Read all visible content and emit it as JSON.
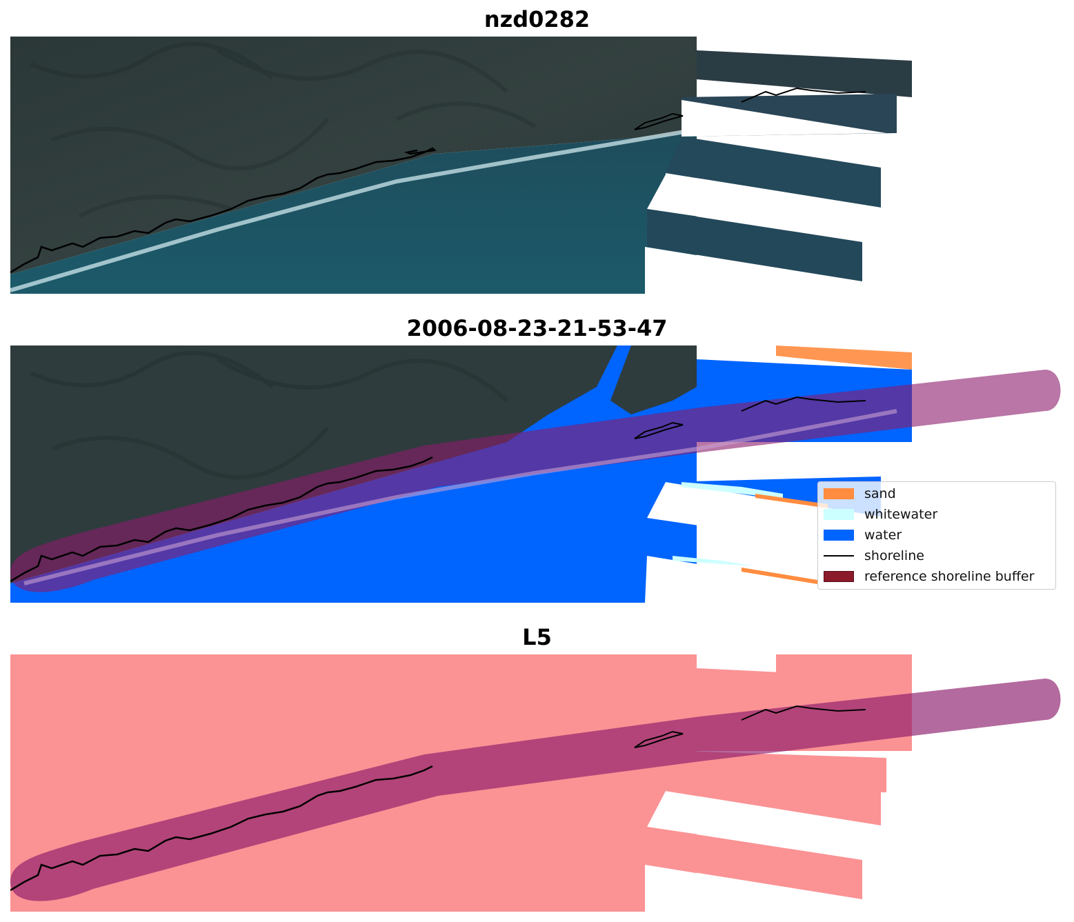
{
  "panels": [
    {
      "title": "nzd0282",
      "kind": "rgb-image"
    },
    {
      "title": "2006-08-23-21-53-47",
      "kind": "classified-image"
    },
    {
      "title": "L5",
      "kind": "mask-image"
    }
  ],
  "legend": {
    "items": [
      {
        "label": "sand",
        "color": "#ff8c3f",
        "type": "patch"
      },
      {
        "label": "whitewater",
        "color": "#ccffff",
        "type": "patch"
      },
      {
        "label": "water",
        "color": "#0064ff",
        "type": "patch"
      },
      {
        "label": "shoreline",
        "color": "#000000",
        "type": "line"
      },
      {
        "label": "reference shoreline buffer",
        "color": "#8b1a2a",
        "type": "patch"
      }
    ]
  },
  "colors": {
    "land": "#2c3a3c",
    "sea": "#1f4e60",
    "water": "#0064ff",
    "sand": "#ff8c3f",
    "whitewater": "#ccffff",
    "buffer": "#8b1a2a",
    "mask": "#fb9294",
    "shoreline": "#000000"
  }
}
